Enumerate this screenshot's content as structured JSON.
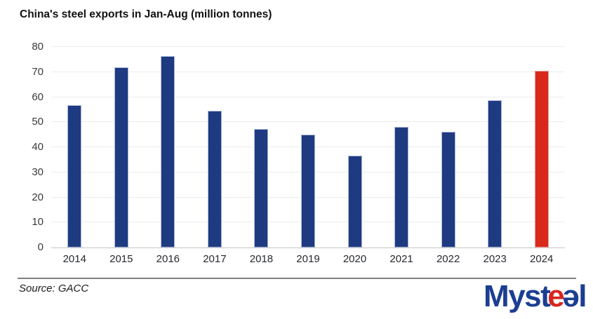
{
  "page": {
    "background": "#ffffff"
  },
  "title": "China's steel exports in Jan-Aug (million tonnes)",
  "source": "Source: GACC",
  "logo": {
    "prefix": "Myst",
    "e_red": "e",
    "e_blue": "ə",
    "suffix": "l",
    "blue": "#1c3e92",
    "red": "#d8251e"
  },
  "chart_data": {
    "type": "bar",
    "title": "China's steel exports in Jan-Aug (million tonnes)",
    "categories": [
      "2014",
      "2015",
      "2016",
      "2017",
      "2018",
      "2019",
      "2020",
      "2021",
      "2022",
      "2023",
      "2024"
    ],
    "values": [
      56.8,
      71.9,
      76.3,
      54.5,
      47.2,
      45.0,
      36.6,
      48.2,
      46.2,
      58.8,
      70.6
    ],
    "xlabel": "",
    "ylabel": "",
    "ylim": [
      0,
      80
    ],
    "yticks": [
      0,
      10,
      20,
      30,
      40,
      50,
      60,
      70,
      80
    ],
    "grid": true,
    "legend": false,
    "bar_color": "#1e3a80",
    "highlight_category": "2024",
    "highlight_color": "#d8291b",
    "source": "Source: GACC"
  }
}
